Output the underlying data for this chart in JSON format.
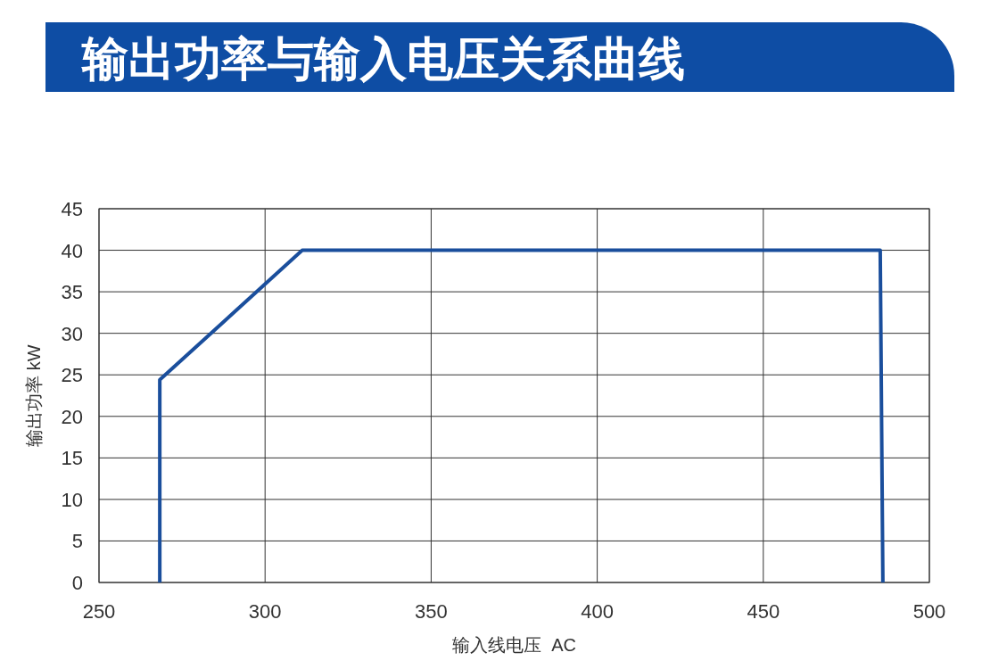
{
  "chart_data": {
    "type": "line",
    "title": "输出功率与输入电压关系曲线",
    "xlabel": "输入线电压  AC",
    "ylabel": "输出功率 kW",
    "x": [
      268.3,
      268.3,
      311.2,
      485.2,
      486
    ],
    "series": [
      {
        "color": "#1a4e9c",
        "values": [
          0,
          24.4,
          40,
          40,
          0
        ]
      }
    ],
    "xlim": [
      250,
      500
    ],
    "xticks": [
      250,
      300,
      350,
      400,
      450,
      500
    ],
    "ylim": [
      0,
      45
    ],
    "yticks": [
      0,
      5,
      10,
      15,
      20,
      25,
      30,
      35,
      40,
      45
    ],
    "grid": true,
    "marker": "none",
    "line_style": "solid"
  }
}
